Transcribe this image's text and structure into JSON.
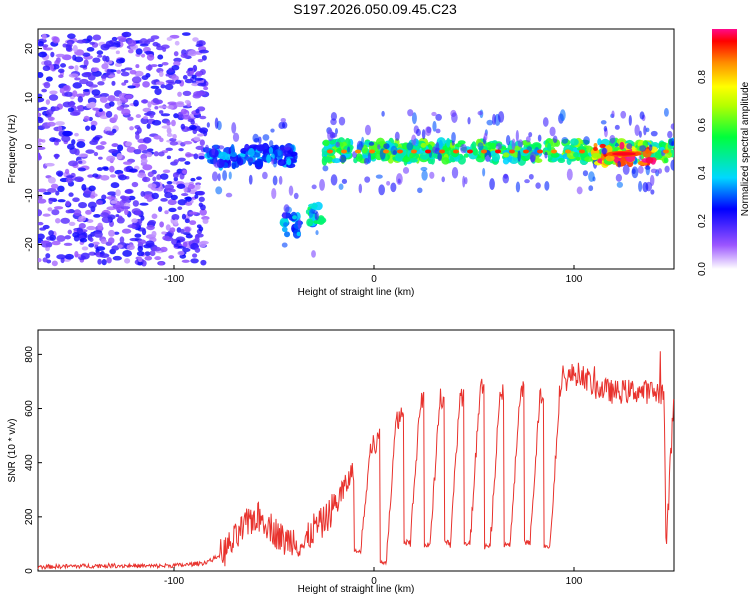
{
  "chart_data": [
    {
      "type": "heatmap",
      "title": "S197.2026.050.09.45.C23",
      "xlabel": "Height of straight line (km)",
      "ylabel": "Frequency (Hz)",
      "xlim": [
        -168,
        150
      ],
      "ylim": [
        -25,
        24
      ],
      "xticks": [
        -100,
        0,
        100
      ],
      "yticks": [
        -20,
        -10,
        0,
        10,
        20
      ],
      "colorbar": {
        "label": "Normalized spectral amplitude",
        "range": [
          0,
          1
        ],
        "ticks": [
          "0.0",
          "0.2",
          "0.4",
          "0.6",
          "0.8"
        ]
      },
      "features": [
        {
          "name": "noise",
          "x_range": [
            -168,
            -84
          ],
          "freq_range": [
            -24,
            23
          ],
          "amplitude": 0.15
        },
        {
          "name": "band-1",
          "x_range": [
            -84,
            -40
          ],
          "freq_center": -2,
          "amplitude": 0.35
        },
        {
          "name": "drop-1",
          "x_range": [
            -45,
            -37
          ],
          "freq_center": -16,
          "amplitude": 0.4
        },
        {
          "name": "drop-2",
          "x_range": [
            -33,
            -26
          ],
          "freq_center": -14,
          "amplitude": 0.5
        },
        {
          "name": "main-band",
          "x_range": [
            -26,
            150
          ],
          "freq_center": -1,
          "amplitude": 0.6
        },
        {
          "name": "peak",
          "x_range": [
            110,
            140
          ],
          "freq_center": -1.5,
          "amplitude": 0.95
        }
      ]
    },
    {
      "type": "line",
      "xlabel": "Height of straight line (km)",
      "ylabel": "SNR (10 * v/v)",
      "xlim": [
        -168,
        150
      ],
      "ylim": [
        0,
        890
      ],
      "xticks": [
        -100,
        0,
        100
      ],
      "yticks": [
        0,
        200,
        400,
        600,
        800
      ],
      "series": [
        {
          "name": "SNR",
          "color": "#e8322d",
          "x": [
            -168,
            -150,
            -130,
            -110,
            -95,
            -85,
            -80,
            -75,
            -70,
            -65,
            -60,
            -55,
            -50,
            -45,
            -40,
            -35,
            -30,
            -25,
            -20,
            -15,
            -10,
            -5,
            0,
            5,
            10,
            15,
            20,
            25,
            30,
            40,
            50,
            60,
            70,
            80,
            85,
            90,
            95,
            100,
            105,
            110,
            120,
            130,
            140,
            145,
            146,
            150
          ],
          "y": [
            15,
            18,
            20,
            18,
            22,
            30,
            45,
            70,
            110,
            160,
            200,
            190,
            150,
            110,
            120,
            90,
            160,
            180,
            240,
            300,
            380,
            430,
            460,
            520,
            560,
            580,
            600,
            620,
            650,
            640,
            670,
            660,
            660,
            660,
            650,
            670,
            700,
            730,
            720,
            680,
            660,
            665,
            660,
            660,
            80,
            660
          ],
          "drops": [
            {
              "x": -10,
              "y": 60
            },
            {
              "x": 3,
              "y": 25
            },
            {
              "x": 15,
              "y": 95
            },
            {
              "x": 25,
              "y": 85
            },
            {
              "x": 35,
              "y": 95
            },
            {
              "x": 45,
              "y": 90
            },
            {
              "x": 55,
              "y": 80
            },
            {
              "x": 65,
              "y": 85
            },
            {
              "x": 75,
              "y": 95
            },
            {
              "x": 85,
              "y": 80
            }
          ]
        }
      ]
    }
  ]
}
